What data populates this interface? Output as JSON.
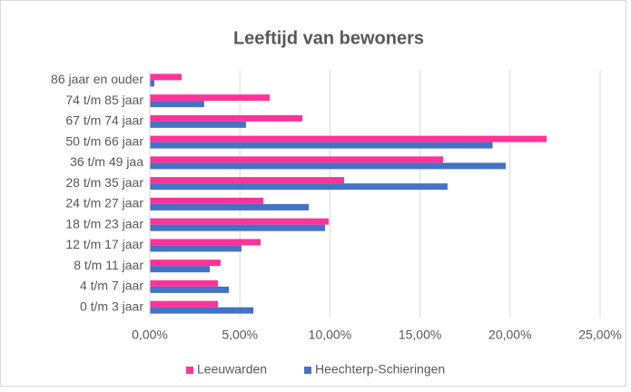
{
  "chart_data": {
    "type": "hbar",
    "title": "Leeftijd van bewoners",
    "categories": [
      "0 t/m 3 jaar",
      "4 t/m 7 jaar",
      "8 t/m 11 jaar",
      "12 t/m 17 jaar",
      "18 t/m 23 jaar",
      "24 t/m 27 jaar",
      "28 t/m 35 jaar",
      "36 t/m 49 jaa",
      "50 t/m 66 jaar",
      "67 t/m 74 jaar",
      "74 t/m 85 jaar",
      "86 jaar en ouder"
    ],
    "series": [
      {
        "name": "Leeuwarden",
        "color": "#ff3399",
        "values": [
          3.78,
          3.78,
          3.93,
          6.15,
          9.93,
          6.3,
          10.79,
          16.28,
          22.03,
          8.47,
          6.65,
          1.76
        ]
      },
      {
        "name": "Heechterp-Schieringen",
        "color": "#4472c4",
        "values": [
          5.75,
          4.39,
          3.33,
          5.09,
          9.73,
          8.82,
          16.53,
          19.76,
          19.03,
          5.34,
          3.02,
          0.25
        ]
      }
    ],
    "xlim": [
      0,
      25
    ],
    "xticks": [
      {
        "value": 0,
        "label": "0,00%"
      },
      {
        "value": 5,
        "label": "5,00%"
      },
      {
        "value": 10,
        "label": "10,00%"
      },
      {
        "value": 15,
        "label": "15,00%"
      },
      {
        "value": 20,
        "label": "20,00%"
      },
      {
        "value": 25,
        "label": "25,00%"
      }
    ],
    "grid": true,
    "legend": "bottom"
  }
}
